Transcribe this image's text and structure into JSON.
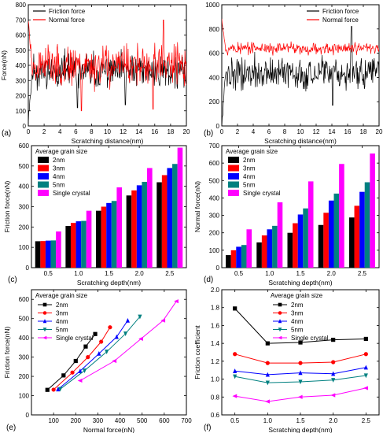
{
  "chart_data": [
    {
      "panel": "(a)",
      "type": "line",
      "xlabel": "Scratching distance(nm)",
      "ylabel": "Force(nN)",
      "xlim": [
        0,
        20
      ],
      "ylim": [
        0,
        800
      ],
      "xticks": [
        0,
        2,
        4,
        6,
        8,
        10,
        12,
        14,
        16,
        18,
        20
      ],
      "yticks": [
        0,
        100,
        200,
        300,
        400,
        500,
        600,
        700,
        800
      ],
      "legend_position": "top-left",
      "series": [
        {
          "name": "Friction force",
          "color": "#000000",
          "level": 360,
          "spread": 110,
          "start": 40,
          "seed": 11,
          "dips": [
            [
              6.2,
              120
            ],
            [
              12.3,
              140
            ]
          ]
        },
        {
          "name": "Normal force",
          "color": "#ff0000",
          "level": 400,
          "spread": 130,
          "start": 690,
          "seed": 23,
          "dips": [
            [
              6.7,
              100
            ],
            [
              15.8,
              110
            ]
          ],
          "peaks": [
            [
              17.1,
              700
            ]
          ]
        }
      ]
    },
    {
      "panel": "(b)",
      "type": "line",
      "xlabel": "Scratching distance(nm)",
      "ylabel": "",
      "xlim": [
        0,
        20
      ],
      "ylim": [
        0,
        1000
      ],
      "xticks": [
        0,
        2,
        4,
        6,
        8,
        10,
        12,
        14,
        16,
        18,
        20
      ],
      "yticks": [
        0,
        200,
        400,
        600,
        800,
        1000
      ],
      "legend_position": "top-right",
      "series": [
        {
          "name": "Friction force",
          "color": "#000000",
          "level": 430,
          "spread": 130,
          "start": 20,
          "seed": 37,
          "dips": [
            [
              14.1,
              170
            ]
          ],
          "peaks": [
            [
              16.5,
              820
            ]
          ]
        },
        {
          "name": "Normal force",
          "color": "#ff0000",
          "level": 640,
          "spread": 50,
          "start": 880,
          "seed": 53
        }
      ]
    },
    {
      "panel": "(c)",
      "type": "bar",
      "xlabel": "Scratching depth(nm)",
      "ylabel": "Friction force(nN)",
      "categories": [
        "0.5",
        "1.0",
        "1.5",
        "2.0",
        "2.5"
      ],
      "ylim": [
        0,
        600
      ],
      "yticks": [
        0,
        100,
        200,
        300,
        400,
        500,
        600
      ],
      "legend_title": "Average grain size",
      "legend_position": "top-left",
      "series": [
        {
          "name": "2nm",
          "color": "#000000",
          "values": [
            130,
            205,
            280,
            355,
            420
          ]
        },
        {
          "name": "3nm",
          "color": "#ff0000",
          "values": [
            131,
            220,
            300,
            380,
            455
          ]
        },
        {
          "name": "4nm",
          "color": "#0000ff",
          "values": [
            133,
            228,
            318,
            405,
            490
          ]
        },
        {
          "name": "5nm",
          "color": "#008080",
          "values": [
            134,
            230,
            328,
            422,
            510
          ]
        },
        {
          "name": "Single crystal",
          "color": "#ff00ff",
          "values": [
            178,
            280,
            395,
            490,
            590
          ]
        }
      ]
    },
    {
      "panel": "(d)",
      "type": "bar",
      "xlabel": "Scratching depth(nm)",
      "ylabel": "Normal force(nN)",
      "categories": [
        "0.5",
        "1.0",
        "1.5",
        "2.0",
        "2.5"
      ],
      "ylim": [
        0,
        700
      ],
      "yticks": [
        0,
        100,
        200,
        300,
        400,
        500,
        600,
        700
      ],
      "legend_title": "Average grain size",
      "legend_position": "top-left",
      "series": [
        {
          "name": "2nm",
          "color": "#000000",
          "values": [
            72,
            145,
            200,
            245,
            288
          ]
        },
        {
          "name": "3nm",
          "color": "#ff0000",
          "values": [
            100,
            185,
            255,
            315,
            355
          ]
        },
        {
          "name": "4nm",
          "color": "#0000ff",
          "values": [
            120,
            220,
            305,
            385,
            435
          ]
        },
        {
          "name": "5nm",
          "color": "#008080",
          "values": [
            130,
            240,
            340,
            425,
            490
          ]
        },
        {
          "name": "Single crystal",
          "color": "#ff00ff",
          "values": [
            220,
            375,
            495,
            595,
            655
          ]
        }
      ]
    },
    {
      "panel": "(e)",
      "type": "scatter",
      "xlabel": "Normal force(nN)",
      "ylabel": "Friction force(nN)",
      "xlim": [
        0,
        700
      ],
      "ylim": [
        0,
        650
      ],
      "xticks": [
        100,
        200,
        300,
        400,
        500,
        600,
        700
      ],
      "yticks": [
        0,
        100,
        200,
        300,
        400,
        500,
        600
      ],
      "legend_title": "Average grain size",
      "legend_position": "top-left",
      "series": [
        {
          "name": "2nm",
          "color": "#000000",
          "marker": "square",
          "x": [
            72,
            145,
            200,
            245,
            288
          ],
          "y": [
            130,
            205,
            280,
            355,
            420
          ]
        },
        {
          "name": "3nm",
          "color": "#ff0000",
          "marker": "circle",
          "x": [
            100,
            185,
            255,
            315,
            355
          ],
          "y": [
            131,
            220,
            300,
            380,
            455
          ]
        },
        {
          "name": "4nm",
          "color": "#0000ff",
          "marker": "triangle-up",
          "x": [
            120,
            220,
            305,
            385,
            435
          ],
          "y": [
            133,
            228,
            318,
            405,
            490
          ]
        },
        {
          "name": "5nm",
          "color": "#008080",
          "marker": "triangle-down",
          "x": [
            130,
            240,
            340,
            425,
            490
          ],
          "y": [
            134,
            230,
            328,
            422,
            510
          ]
        },
        {
          "name": "Single crystal",
          "color": "#ff00ff",
          "marker": "triangle-left",
          "x": [
            220,
            375,
            495,
            595,
            655
          ],
          "y": [
            178,
            280,
            395,
            490,
            590
          ]
        }
      ]
    },
    {
      "panel": "(f)",
      "type": "line",
      "xlabel": "Scratching depth(nm)",
      "ylabel": "Friction coefficient",
      "xlim": [
        0.3,
        2.7
      ],
      "ylim": [
        0.6,
        2.0
      ],
      "xticks": [
        0.5,
        1.0,
        1.5,
        2.0,
        2.5
      ],
      "xticklabels": [
        "0.5",
        "1.0",
        "1.5",
        "2.0",
        "2.5"
      ],
      "yticks": [
        0.6,
        0.8,
        1.0,
        1.2,
        1.4,
        1.6,
        1.8,
        2.0
      ],
      "yticklabels": [
        "0.6",
        "0.8",
        "1.0",
        "1.2",
        "1.4",
        "1.6",
        "1.8",
        "2.0"
      ],
      "legend_title": "Average grain size",
      "legend_position": "top-right",
      "series": [
        {
          "name": "2nm",
          "color": "#000000",
          "marker": "square",
          "x": [
            0.5,
            1.0,
            1.5,
            2.0,
            2.5
          ],
          "y": [
            1.79,
            1.4,
            1.41,
            1.44,
            1.45
          ]
        },
        {
          "name": "3nm",
          "color": "#ff0000",
          "marker": "circle",
          "x": [
            0.5,
            1.0,
            1.5,
            2.0,
            2.5
          ],
          "y": [
            1.28,
            1.18,
            1.18,
            1.19,
            1.28
          ]
        },
        {
          "name": "4nm",
          "color": "#0000ff",
          "marker": "triangle-up",
          "x": [
            0.5,
            1.0,
            1.5,
            2.0,
            2.5
          ],
          "y": [
            1.09,
            1.05,
            1.07,
            1.06,
            1.13
          ]
        },
        {
          "name": "5nm",
          "color": "#008080",
          "marker": "triangle-down",
          "x": [
            0.5,
            1.0,
            1.5,
            2.0,
            2.5
          ],
          "y": [
            1.03,
            0.96,
            0.97,
            0.99,
            1.04
          ]
        },
        {
          "name": "Single crystal",
          "color": "#ff00ff",
          "marker": "triangle-left",
          "x": [
            0.5,
            1.0,
            1.5,
            2.0,
            2.5
          ],
          "y": [
            0.81,
            0.75,
            0.8,
            0.82,
            0.9
          ]
        }
      ]
    }
  ]
}
